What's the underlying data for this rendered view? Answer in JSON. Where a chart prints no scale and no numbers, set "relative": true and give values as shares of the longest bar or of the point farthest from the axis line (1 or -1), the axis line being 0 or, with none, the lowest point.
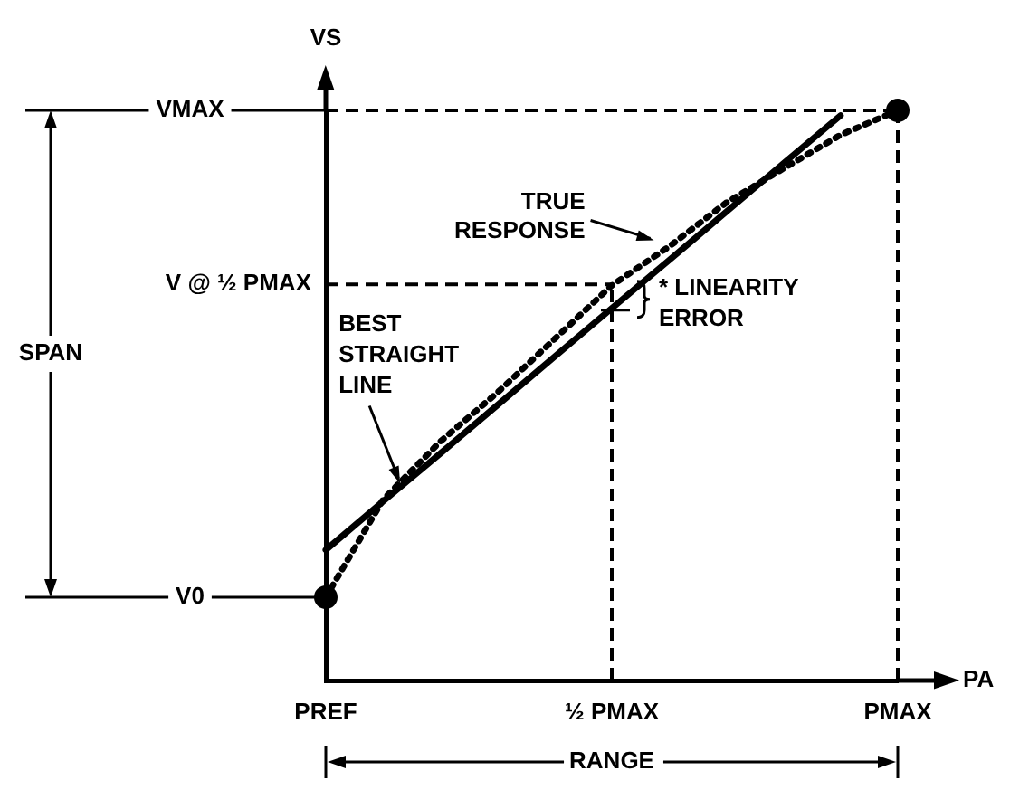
{
  "chart_data": {
    "type": "line",
    "relative": true,
    "xlabel": "PA",
    "ylabel": "VS",
    "grid": false,
    "legend": false,
    "categories": [
      "PREF",
      null,
      null,
      null,
      null,
      "½ PMAX",
      null,
      null,
      null,
      null,
      "PMAX"
    ],
    "series": [
      {
        "color": "#000000",
        "values": [
          0.146,
          0.317,
          0.419,
          0.505,
          0.599,
          0.693,
          0.761,
          0.838,
          0.898,
          0.957,
          1
        ],
        "line_style": "dotted",
        "marker": "none"
      },
      {
        "color": "#000000",
        "values": [
          0.229,
          0.314,
          0.398,
          0.483,
          0.568,
          0.653,
          0.737,
          0.822,
          0.907,
          0.991,
          null
        ],
        "line_style": "solid",
        "marker": "none"
      },
      {
        "type": "scatter",
        "color": "#000000",
        "values": [
          0.146,
          null,
          null,
          null,
          null,
          null,
          null,
          null,
          null,
          null,
          1
        ],
        "marker": "circle"
      }
    ],
    "ref_lines": [
      {
        "axis": "x",
        "value": "½ PMAX",
        "line_style": "dashed"
      },
      {
        "axis": "y",
        "value": 0.695,
        "label": "V @ ½ PMAX",
        "line_style": "dashed"
      },
      {
        "axis": "x",
        "value": "PMAX",
        "line_style": "dashed"
      },
      {
        "axis": "y",
        "value": 1,
        "label": "VMAX",
        "line_style": "dashed"
      },
      {
        "axis": "y",
        "value": 0.146,
        "label": "V0"
      }
    ],
    "annotations": [
      "TRUE RESPONSE",
      "BEST STRAIGHT LINE",
      "* LINEARITY ERROR",
      "SPAN",
      "RANGE"
    ]
  }
}
